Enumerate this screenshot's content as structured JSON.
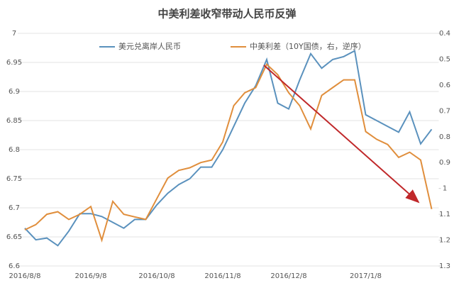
{
  "chart_data": {
    "type": "line",
    "title": "中美利差收窄带动人民币反弹",
    "categories": [
      "2016/8/8",
      null,
      null,
      null,
      null,
      null,
      "2016/9/8",
      null,
      null,
      null,
      null,
      null,
      "2016/10/8",
      null,
      null,
      null,
      null,
      null,
      "2016/11/8",
      null,
      null,
      null,
      null,
      null,
      "2016/12/8",
      null,
      null,
      null,
      null,
      null,
      null,
      "2017/1/8",
      null,
      null,
      null,
      null,
      null,
      null
    ],
    "series": [
      {
        "name": "美元兑离岸人民币",
        "color": "#5a91bd",
        "values": [
          6.665,
          6.645,
          6.648,
          6.635,
          6.66,
          6.69,
          6.69,
          6.685,
          6.675,
          6.665,
          6.68,
          6.68,
          6.705,
          6.725,
          6.74,
          6.75,
          6.77,
          6.77,
          6.8,
          6.84,
          6.88,
          6.91,
          6.955,
          6.88,
          6.87,
          6.92,
          6.965,
          6.94,
          6.955,
          6.96,
          6.97,
          6.86,
          6.85,
          6.84,
          6.83,
          6.865,
          6.81,
          6.835
        ]
      },
      {
        "name": "中美利差（10Y国债，右，逆序）",
        "color": "#e08e3c",
        "axis": "y2",
        "values": [
          1.16,
          1.14,
          1.1,
          1.09,
          1.12,
          1.1,
          1.07,
          1.2,
          1.05,
          1.1,
          1.11,
          1.12,
          1.04,
          0.96,
          0.93,
          0.92,
          0.9,
          0.89,
          0.82,
          0.68,
          0.63,
          0.61,
          0.52,
          0.56,
          0.63,
          0.68,
          0.77,
          0.64,
          0.61,
          0.58,
          0.58,
          0.78,
          0.81,
          0.83,
          0.88,
          0.86,
          0.89,
          1.08
        ]
      }
    ],
    "ylim": [
      6.6,
      7
    ],
    "yticks": [
      6.6,
      6.65,
      6.7,
      6.75,
      6.8,
      6.85,
      6.9,
      6.95,
      7
    ],
    "y2lim": [
      0.4,
      1.3
    ],
    "y2ticks": [
      0.4,
      0.5,
      0.6,
      0.7,
      0.8,
      0.9,
      1,
      1.1,
      1.2,
      1.3
    ],
    "y2_inverted": true,
    "grid": true
  }
}
